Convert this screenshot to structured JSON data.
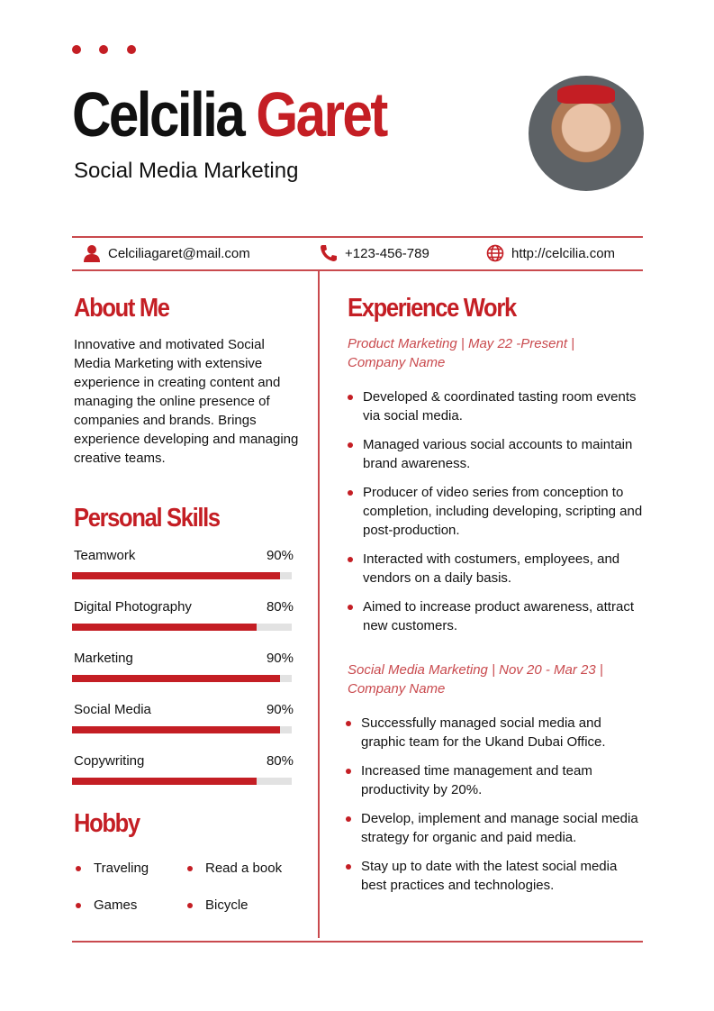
{
  "header": {
    "first_name": "Celcilia",
    "last_name": "Garet",
    "title": "Social Media Marketing"
  },
  "contact": {
    "email": "Celciliagaret@mail.com",
    "phone": "+123-456-789",
    "website": "http://celcilia.com"
  },
  "about": {
    "heading": "About Me",
    "text": "Innovative and motivated Social Media Marketing with extensive experience in creating content and managing the online presence of companies and brands. Brings experience developing and managing creative teams."
  },
  "skills": {
    "heading": "Personal Skills",
    "items": [
      {
        "label": "Teamwork",
        "percent": "90%",
        "value": 90
      },
      {
        "label": "Digital Photography",
        "percent": "80%",
        "value": 80
      },
      {
        "label": "Marketing",
        "percent": "90%",
        "value": 90
      },
      {
        "label": "Social Media",
        "percent": "90%",
        "value": 90
      },
      {
        "label": "Copywriting",
        "percent": "80%",
        "value": 80
      }
    ]
  },
  "hobby": {
    "heading": "Hobby",
    "items": [
      "Traveling",
      "Read a book",
      "Games",
      "Bicycle"
    ]
  },
  "experience": {
    "heading": "Experience Work",
    "jobs": [
      {
        "title": "Product Marketing | May 22 -Present | Company Name",
        "points": [
          "Developed & coordinated tasting room events via social media.",
          "Managed various social accounts to maintain brand awareness.",
          "Producer of video series from conception to completion, including developing, scripting and post-production.",
          "Interacted with costumers, employees, and vendors on a daily basis.",
          "Aimed to increase product awareness, attract new customers."
        ]
      },
      {
        "title": "Social Media Marketing | Nov 20 - Mar 23 | Company Name",
        "points": [
          "Successfully managed social media and graphic team for the Ukand Dubai Office.",
          "Increased time management and team productivity by 20%.",
          "Develop, implement and manage social media strategy for organic and paid media.",
          "Stay up to date with the latest social media best practices and technologies."
        ]
      }
    ]
  },
  "colors": {
    "accent": "#c41e24"
  }
}
